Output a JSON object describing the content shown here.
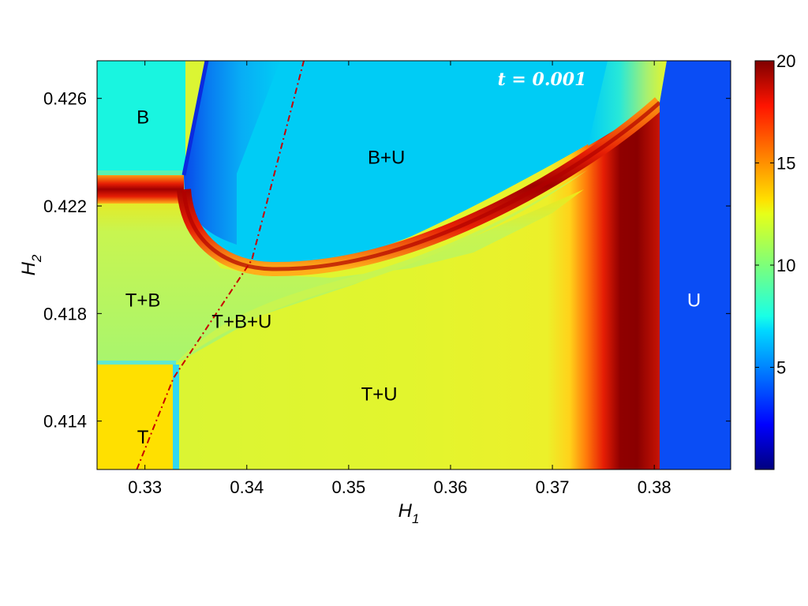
{
  "chart_data": {
    "type": "heatmap",
    "annotation": "t = 0.001",
    "xlabel": "H",
    "xlabel_sub": "1",
    "ylabel": "H",
    "ylabel_sub": "2",
    "xlim": [
      0.3253,
      0.3875
    ],
    "ylim": [
      0.4122,
      0.4274
    ],
    "x_ticks": [
      {
        "value": 0.33,
        "label": "0.33"
      },
      {
        "value": 0.34,
        "label": "0.34"
      },
      {
        "value": 0.35,
        "label": "0.35"
      },
      {
        "value": 0.36,
        "label": "0.36"
      },
      {
        "value": 0.37,
        "label": "0.37"
      },
      {
        "value": 0.38,
        "label": "0.38"
      }
    ],
    "y_ticks": [
      {
        "value": 0.414,
        "label": "0.414"
      },
      {
        "value": 0.418,
        "label": "0.418"
      },
      {
        "value": 0.422,
        "label": "0.422"
      },
      {
        "value": 0.426,
        "label": "0.426"
      }
    ],
    "colorbar": {
      "min": 0,
      "max": 20,
      "colormap": "jet",
      "ticks": [
        {
          "value": 5,
          "label": "5"
        },
        {
          "value": 10,
          "label": "10"
        },
        {
          "value": 15,
          "label": "15"
        },
        {
          "value": 20,
          "label": "20"
        }
      ]
    },
    "regions": [
      {
        "label": "B",
        "x": 0.3298,
        "y": 0.4253,
        "value": 3.5,
        "color": "#19f5e0"
      },
      {
        "label": "B+U",
        "x": 0.3537,
        "y": 0.4238,
        "value": 3.0,
        "color": "#00ccf5"
      },
      {
        "label": "T+B",
        "x": 0.3298,
        "y": 0.4185,
        "value": 6.5,
        "color": "#b2f56a"
      },
      {
        "label": "T+B+U",
        "x": 0.3395,
        "y": 0.4177,
        "value": 7.0,
        "color": "#c8f550"
      },
      {
        "label": "T+U",
        "x": 0.353,
        "y": 0.415,
        "value": 7.5,
        "color": "#dcf533"
      },
      {
        "label": "T",
        "x": 0.3298,
        "y": 0.4134,
        "value": 8.5,
        "color": "#ffe600"
      },
      {
        "label": "U",
        "x": 0.3839,
        "y": 0.4185,
        "value": 1.0,
        "color": "#0a4df5"
      }
    ],
    "dash_dot_line": {
      "color": "#c80000",
      "points": [
        [
          0.3292,
          0.4122
        ],
        [
          0.3328,
          0.4156
        ],
        [
          0.3405,
          0.42
        ],
        [
          0.3456,
          0.4274
        ]
      ]
    }
  }
}
